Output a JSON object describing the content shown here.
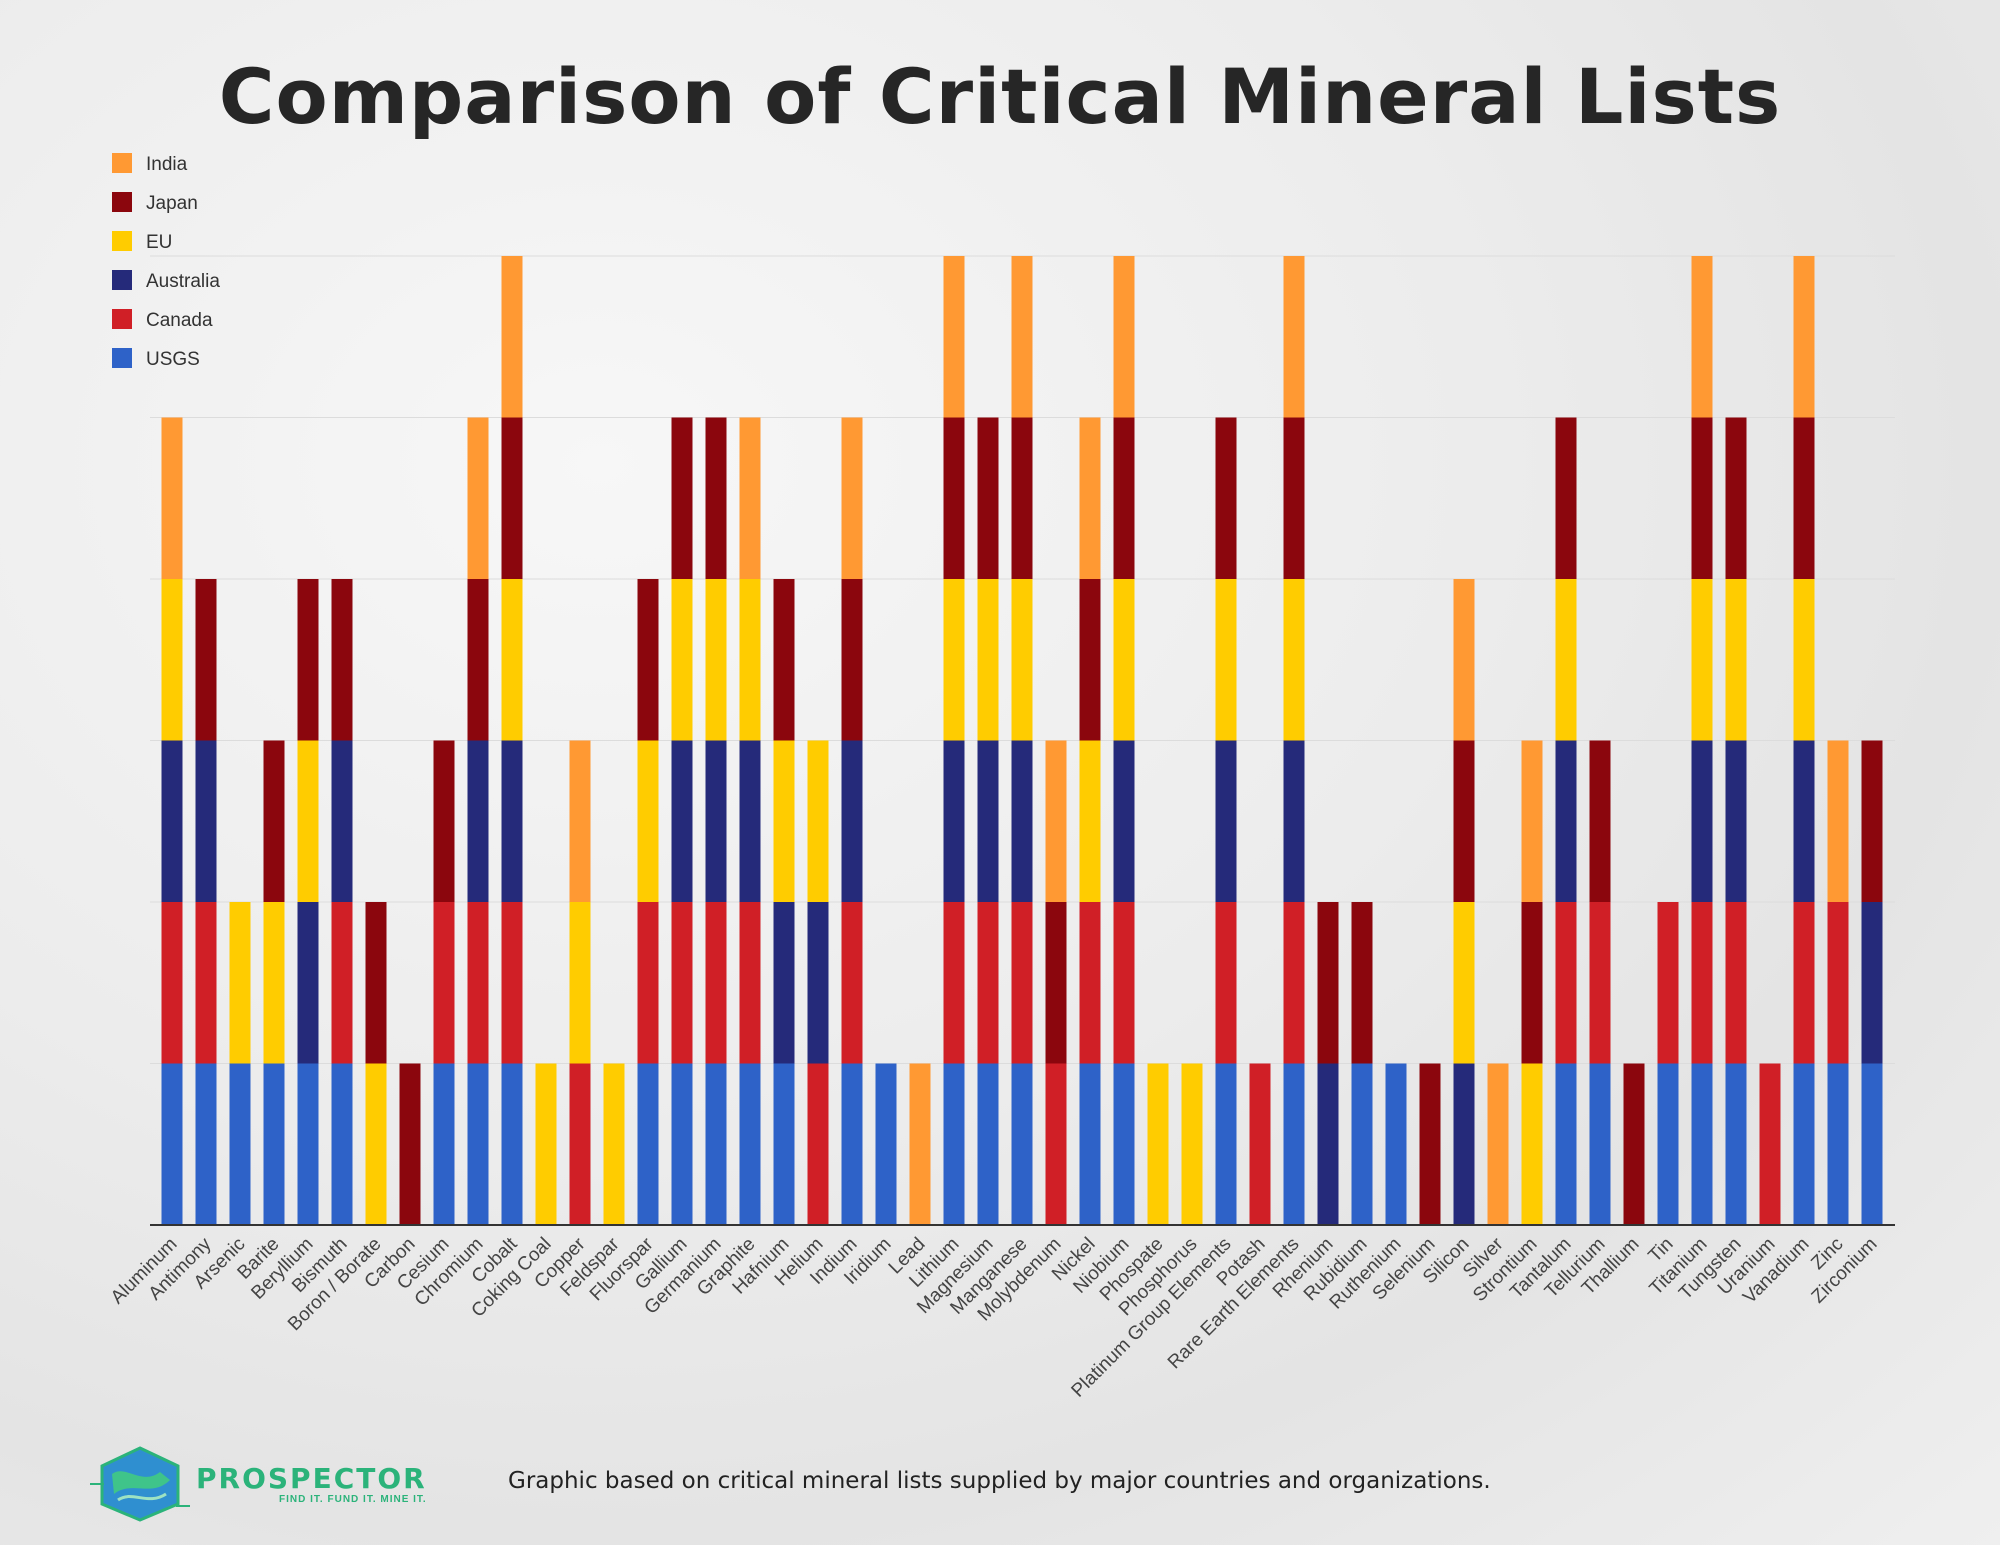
{
  "title": "Comparison of Critical Mineral Lists",
  "footer": "Graphic based on critical mineral lists supplied by major countries and organizations.",
  "logo": {
    "name": "PROSPECTOR",
    "tagline": "FIND IT. FUND IT. MINE IT."
  },
  "chart_data": {
    "type": "bar",
    "stacked": true,
    "title": "Comparison of Critical Mineral Lists",
    "xlabel": "",
    "ylabel": "",
    "ylim": [
      0,
      6
    ],
    "grid": true,
    "legend_position": "top-left",
    "categories": [
      "Aluminum",
      "Antimony",
      "Arsenic",
      "Barite",
      "Beryllium",
      "Bismuth",
      "Boron / Borate",
      "Carbon",
      "Cesium",
      "Chromium",
      "Cobalt",
      "Coking Coal",
      "Copper",
      "Feldspar",
      "Fluorspar",
      "Gallium",
      "Germanium",
      "Graphite",
      "Hafnium",
      "Helium",
      "Indium",
      "Iridium",
      "Lead",
      "Lithium",
      "Magnesium",
      "Manganese",
      "Molybdenum",
      "Nickel",
      "Niobium",
      "Phospate",
      "Phosphorus",
      "Platinum Group Elements",
      "Potash",
      "Rare Earth Elements",
      "Rhenium",
      "Rubidium",
      "Ruthenium",
      "Selenium",
      "Silicon",
      "Silver",
      "Strontium",
      "Tantalum",
      "Tellurium",
      "Thallium",
      "Tin",
      "Titanium",
      "Tungsten",
      "Uranium",
      "Vanadium",
      "Zinc",
      "Zirconium"
    ],
    "series": [
      {
        "name": "USGS",
        "color": "#2e62c8",
        "values": [
          1,
          1,
          1,
          1,
          1,
          1,
          0,
          0,
          1,
          1,
          1,
          0,
          0,
          0,
          1,
          1,
          1,
          1,
          1,
          0,
          1,
          1,
          0,
          1,
          1,
          1,
          0,
          1,
          1,
          0,
          0,
          1,
          0,
          1,
          0,
          1,
          1,
          0,
          0,
          0,
          0,
          1,
          1,
          0,
          1,
          1,
          1,
          0,
          1,
          1,
          1
        ]
      },
      {
        "name": "Canada",
        "color": "#d01f26",
        "values": [
          1,
          1,
          0,
          0,
          0,
          1,
          0,
          0,
          1,
          1,
          1,
          0,
          1,
          0,
          1,
          1,
          1,
          1,
          0,
          1,
          1,
          0,
          0,
          1,
          1,
          1,
          1,
          1,
          1,
          0,
          0,
          1,
          1,
          1,
          0,
          0,
          0,
          0,
          0,
          0,
          0,
          1,
          1,
          0,
          1,
          1,
          1,
          1,
          1,
          1,
          0
        ]
      },
      {
        "name": "Australia",
        "color": "#252a7a",
        "values": [
          1,
          1,
          0,
          0,
          1,
          1,
          0,
          0,
          0,
          1,
          1,
          0,
          0,
          0,
          0,
          1,
          1,
          1,
          1,
          1,
          1,
          0,
          0,
          1,
          1,
          1,
          0,
          0,
          1,
          0,
          0,
          1,
          0,
          1,
          1,
          0,
          0,
          0,
          1,
          0,
          0,
          1,
          0,
          0,
          0,
          1,
          1,
          0,
          1,
          0,
          1
        ]
      },
      {
        "name": "EU",
        "color": "#ffcc00",
        "values": [
          1,
          0,
          1,
          1,
          1,
          0,
          1,
          0,
          0,
          0,
          1,
          1,
          1,
          1,
          1,
          1,
          1,
          1,
          1,
          1,
          0,
          0,
          0,
          1,
          1,
          1,
          0,
          1,
          1,
          1,
          1,
          1,
          0,
          1,
          0,
          0,
          0,
          0,
          1,
          0,
          1,
          1,
          0,
          0,
          0,
          1,
          1,
          0,
          1,
          0,
          0
        ]
      },
      {
        "name": "Japan",
        "color": "#8b060d",
        "values": [
          0,
          1,
          0,
          1,
          1,
          1,
          1,
          1,
          1,
          1,
          1,
          0,
          0,
          0,
          1,
          1,
          1,
          0,
          1,
          0,
          1,
          0,
          0,
          1,
          1,
          1,
          1,
          1,
          1,
          0,
          0,
          1,
          0,
          1,
          1,
          1,
          0,
          1,
          1,
          0,
          1,
          1,
          1,
          1,
          0,
          1,
          1,
          0,
          1,
          0,
          1
        ]
      },
      {
        "name": "India",
        "color": "#ff9933",
        "values": [
          1,
          0,
          0,
          0,
          0,
          0,
          0,
          0,
          0,
          1,
          1,
          0,
          1,
          0,
          0,
          0,
          0,
          1,
          0,
          0,
          1,
          0,
          1,
          1,
          0,
          1,
          1,
          1,
          1,
          0,
          0,
          0,
          0,
          1,
          0,
          0,
          0,
          0,
          1,
          1,
          1,
          0,
          0,
          0,
          0,
          1,
          0,
          0,
          1,
          1,
          0
        ]
      }
    ],
    "legend_order": [
      "India",
      "Japan",
      "EU",
      "Australia",
      "Canada",
      "USGS"
    ]
  }
}
